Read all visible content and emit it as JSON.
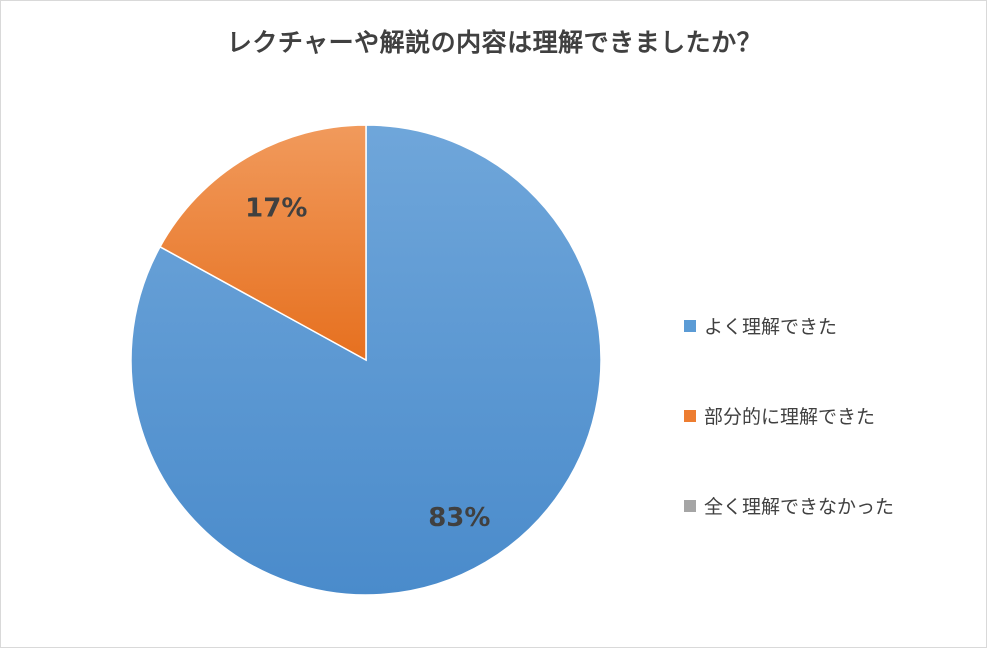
{
  "chart_data": {
    "type": "pie",
    "title": "レクチャーや解説の内容は理解できましたか？",
    "categories": [
      "よく理解できた",
      "部分的に理解できた",
      "全く理解できなかった"
    ],
    "values": [
      83,
      17,
      0
    ],
    "data_labels": [
      "83%",
      "17%",
      ""
    ],
    "colors": [
      "#5b9bd5",
      "#ed7d31",
      "#a5a5a5"
    ],
    "legend_position": "right"
  }
}
